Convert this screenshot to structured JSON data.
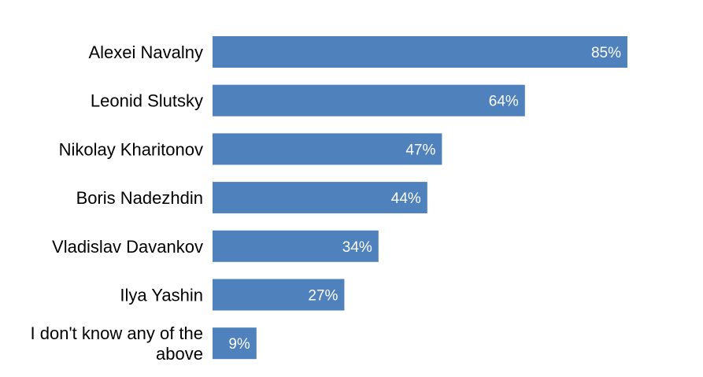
{
  "chart_data": {
    "type": "bar",
    "orientation": "horizontal",
    "categories": [
      "Alexei Navalny",
      "Leonid Slutsky",
      "Nikolay Kharitonov",
      "Boris Nadezhdin",
      "Vladislav Davankov",
      "Ilya Yashin",
      "I don't know any of the above"
    ],
    "values": [
      85,
      64,
      47,
      44,
      34,
      27,
      9
    ],
    "value_labels": [
      "85%",
      "64%",
      "47%",
      "44%",
      "34%",
      "27%",
      "9%"
    ],
    "unit": "%",
    "xlim": [
      0,
      100
    ],
    "grid": false,
    "legend": "none",
    "bar_color": "#4f81bd",
    "label_color": "#ffffff"
  }
}
